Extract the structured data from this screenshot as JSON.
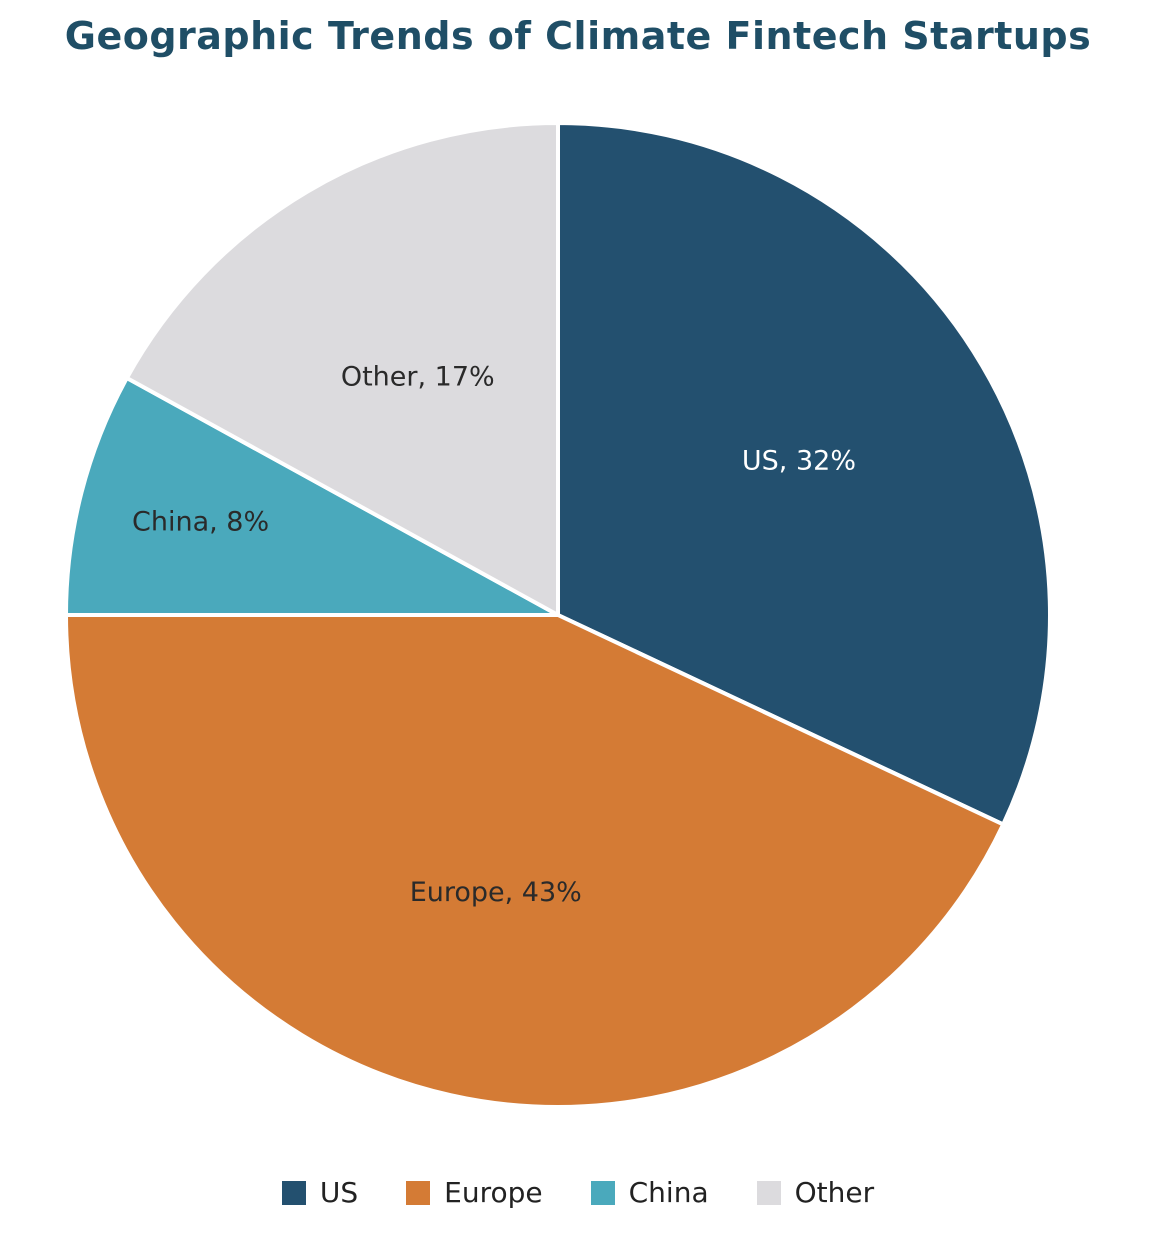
{
  "chart_data": {
    "type": "pie",
    "title": "Geographic Trends of Climate Fintech Startups",
    "slices": [
      {
        "name": "US",
        "value": 32,
        "label": "US, 32%",
        "color": "#23506f",
        "label_color": "#ffffff"
      },
      {
        "name": "Europe",
        "value": 43,
        "label": "Europe, 43%",
        "color": "#d47b35",
        "label_color": "#2a2a2a"
      },
      {
        "name": "China",
        "value": 8,
        "label": "China, 8%",
        "color": "#4aa9bc",
        "label_color": "#2a2a2a"
      },
      {
        "name": "Other",
        "value": 17,
        "label": "Other, 17%",
        "color": "#dcdbde",
        "label_color": "#2a2a2a"
      }
    ],
    "legend_position": "bottom"
  },
  "legend": {
    "items": [
      {
        "label": "US",
        "color": "#23506f"
      },
      {
        "label": "Europe",
        "color": "#d47b35"
      },
      {
        "label": "China",
        "color": "#4aa9bc"
      },
      {
        "label": "Other",
        "color": "#dcdbde"
      }
    ]
  }
}
